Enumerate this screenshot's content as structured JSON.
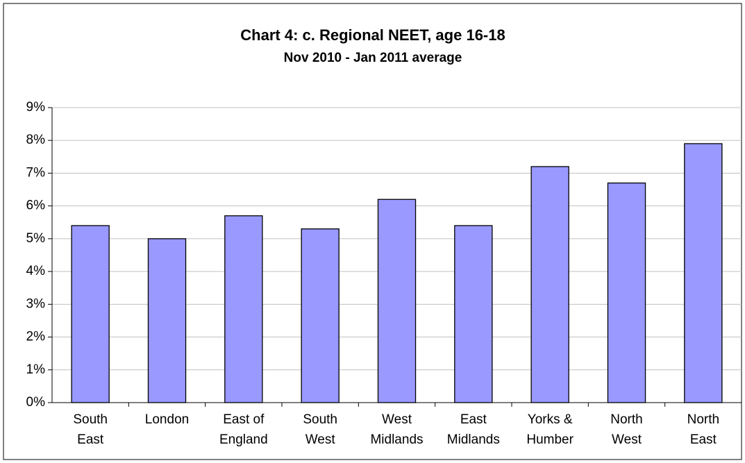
{
  "chart_data": {
    "type": "bar",
    "title": "Chart 4: c. Regional NEET, age 16-18",
    "subtitle": "Nov 2010 - Jan 2011 average",
    "categories": [
      [
        "South",
        "East"
      ],
      [
        "London"
      ],
      [
        "East of",
        "England"
      ],
      [
        "South",
        "West"
      ],
      [
        "West",
        "Midlands"
      ],
      [
        "East",
        "Midlands"
      ],
      [
        "Yorks &",
        "Humber"
      ],
      [
        "North",
        "West"
      ],
      [
        "North",
        "East"
      ]
    ],
    "values": [
      5.4,
      5.0,
      5.7,
      5.3,
      6.2,
      5.4,
      7.2,
      6.7,
      7.9
    ],
    "color": "#9999ff",
    "ylim": [
      0,
      9
    ],
    "yticks": [
      {
        "value": 0,
        "label": "0%"
      },
      {
        "value": 1,
        "label": "1%"
      },
      {
        "value": 2,
        "label": "2%"
      },
      {
        "value": 3,
        "label": "3%"
      },
      {
        "value": 4,
        "label": "4%"
      },
      {
        "value": 5,
        "label": "5%"
      },
      {
        "value": 6,
        "label": "6%"
      },
      {
        "value": 7,
        "label": "7%"
      },
      {
        "value": 8,
        "label": "8%"
      },
      {
        "value": 9,
        "label": "9%"
      }
    ],
    "grid": true
  }
}
